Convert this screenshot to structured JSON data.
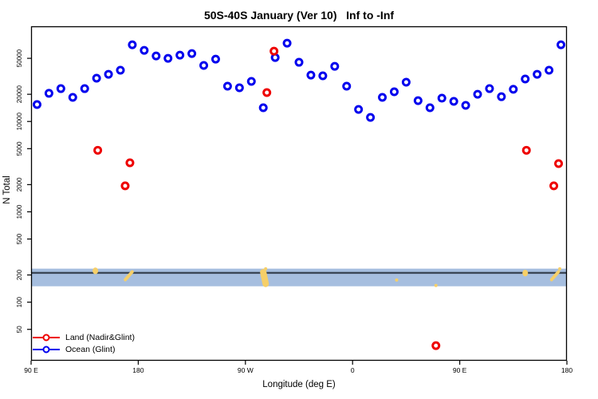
{
  "chart_data": {
    "type": "scatter",
    "title": "50S-40S January (Ver 10)   Inf to -Inf",
    "xlabel": "Longitude (deg E)",
    "ylabel": "N Total",
    "grid": false,
    "x_axis": {
      "lim": [
        90,
        540
      ],
      "ticks": [
        90,
        180,
        270,
        360,
        450,
        540
      ],
      "tick_labels": [
        "90 E",
        "180",
        "90 W",
        "0",
        "90 E",
        "180"
      ]
    },
    "y_axis": {
      "scale": "log",
      "lim": [
        22.5,
        113000
      ],
      "ticks": [
        50,
        100,
        200,
        500,
        1000,
        2000,
        5000,
        10000,
        20000,
        50000
      ],
      "tick_labels": [
        "50",
        "100",
        "200",
        "500",
        "1000",
        "2000",
        "5000",
        "10000",
        "20000",
        "50000"
      ]
    },
    "series": [
      {
        "name": "Ocean (Glint)",
        "color": "#0000ee",
        "marker": "open-circle",
        "points": [
          [
            95,
            15400
          ],
          [
            105,
            20500
          ],
          [
            115,
            23100
          ],
          [
            125,
            18500
          ],
          [
            135,
            23100
          ],
          [
            145,
            30100
          ],
          [
            155,
            33300
          ],
          [
            165,
            36900
          ],
          [
            175,
            70600
          ],
          [
            185,
            61200
          ],
          [
            195,
            53100
          ],
          [
            205,
            50000
          ],
          [
            215,
            54200
          ],
          [
            225,
            56500
          ],
          [
            235,
            41700
          ],
          [
            245,
            49000
          ],
          [
            255,
            24600
          ],
          [
            265,
            23600
          ],
          [
            275,
            27800
          ],
          [
            285,
            14200
          ],
          [
            295,
            51000
          ],
          [
            305,
            73600
          ],
          [
            315,
            45200
          ],
          [
            325,
            32600
          ],
          [
            335,
            32000
          ],
          [
            345,
            40800
          ],
          [
            355,
            24600
          ],
          [
            365,
            13600
          ],
          [
            375,
            11100
          ],
          [
            385,
            18500
          ],
          [
            395,
            21300
          ],
          [
            405,
            27200
          ],
          [
            415,
            17000
          ],
          [
            425,
            14200
          ],
          [
            435,
            18100
          ],
          [
            445,
            16700
          ],
          [
            455,
            15100
          ],
          [
            465,
            20000
          ],
          [
            475,
            23100
          ],
          [
            485,
            18800
          ],
          [
            495,
            22700
          ],
          [
            505,
            29500
          ],
          [
            515,
            33300
          ],
          [
            525,
            36900
          ],
          [
            535,
            70600
          ]
        ]
      },
      {
        "name": "Land (Nadir&Glint)",
        "color": "#ee0000",
        "marker": "open-circle",
        "points": [
          [
            146,
            4800
          ],
          [
            169,
            1940
          ],
          [
            173,
            3490
          ],
          [
            288,
            20900
          ],
          [
            294,
            60000
          ],
          [
            430,
            33
          ],
          [
            506,
            4800
          ],
          [
            529,
            1940
          ],
          [
            533,
            3420
          ]
        ]
      }
    ],
    "band": {
      "description": "dense ocean sample band",
      "color": "#a6bedf",
      "value_range": [
        150,
        235
      ],
      "line_value": 211,
      "line_color": "#3a4656"
    },
    "band_marks": {
      "description": "land samples inside band",
      "color": "#f6cf68",
      "items": [
        {
          "lon": 144,
          "n": 222,
          "shape": "patch"
        },
        {
          "lon": 172,
          "n": 196,
          "shape": "streak"
        },
        {
          "lon": 286,
          "n": 185,
          "shape": "blob"
        },
        {
          "lon": 287,
          "n": 234,
          "shape": "dot"
        },
        {
          "lon": 397,
          "n": 176,
          "shape": "dot"
        },
        {
          "lon": 430,
          "n": 153,
          "shape": "dot"
        },
        {
          "lon": 505,
          "n": 210,
          "shape": "patch"
        },
        {
          "lon": 530,
          "n": 196,
          "shape": "streak"
        },
        {
          "lon": 534,
          "n": 234,
          "shape": "dot"
        }
      ]
    },
    "legend": {
      "position": "bottom-left",
      "items": [
        {
          "label": "Land (Nadir&Glint)",
          "color": "#ee0000"
        },
        {
          "label": "Ocean (Glint)",
          "color": "#0000ee"
        }
      ]
    }
  }
}
